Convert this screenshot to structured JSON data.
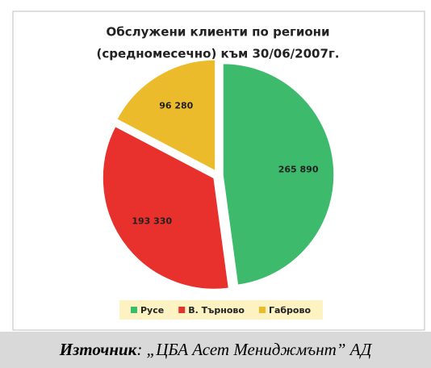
{
  "chart_data": {
    "type": "pie",
    "title_lines": [
      "Обслужени клиенти по региони",
      "(средномесечно) към 30/06/2007г."
    ],
    "categories": [
      "Русе",
      "В. Търново",
      "Габрово"
    ],
    "values": [
      265890,
      193330,
      96280
    ],
    "value_labels": [
      "265 890",
      "193 330",
      "96 280"
    ],
    "colors": [
      "#3dba6c",
      "#e8302c",
      "#ebbb2c"
    ],
    "legend": "bottom"
  },
  "source": {
    "label": "Източник",
    "text": ": „ЦБА Асет  Мениджмънт” АД"
  }
}
